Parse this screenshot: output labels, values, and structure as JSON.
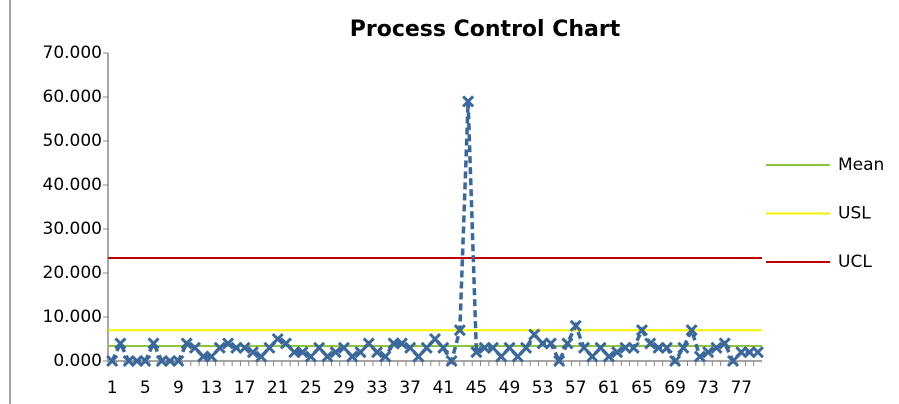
{
  "chart_data": {
    "type": "line",
    "title": "Process Control Chart",
    "categories": [
      1,
      null,
      null,
      null,
      5,
      null,
      null,
      null,
      9,
      null,
      null,
      null,
      13,
      null,
      null,
      null,
      17,
      null,
      null,
      null,
      21,
      null,
      null,
      null,
      25,
      null,
      null,
      null,
      29,
      null,
      null,
      null,
      33,
      null,
      null,
      null,
      37,
      null,
      null,
      null,
      41,
      null,
      null,
      null,
      45,
      null,
      null,
      null,
      49,
      null,
      null,
      null,
      53,
      null,
      null,
      null,
      57,
      null,
      null,
      null,
      61,
      null,
      null,
      null,
      65,
      null,
      null,
      null,
      69,
      null,
      null,
      null,
      73,
      null,
      null,
      null,
      77,
      null,
      null
    ],
    "series": [
      {
        "color": "#3a679c",
        "values": [
          0,
          4,
          0,
          0,
          0,
          4,
          0,
          0,
          0,
          4,
          3,
          1,
          1,
          3,
          4,
          3,
          3,
          2,
          1,
          3,
          5,
          4,
          2,
          2,
          1,
          3,
          1,
          2,
          3,
          1,
          2,
          4,
          2,
          1,
          4,
          4,
          3,
          1,
          3,
          5,
          3,
          0,
          7,
          59,
          2,
          3,
          3,
          1,
          3,
          1,
          3,
          6,
          4,
          4,
          0,
          4,
          8,
          3,
          1,
          3,
          1,
          2,
          3,
          3,
          7,
          4,
          3,
          3,
          0,
          3,
          7,
          1,
          2,
          3,
          4,
          0,
          2,
          2,
          2
        ]
      }
    ],
    "reference_lines": [
      {
        "name": "Mean",
        "color": "#8cc63f",
        "value": 3.4
      },
      {
        "name": "USL",
        "color": "#f2f200",
        "value": 7.0
      },
      {
        "name": "UCL",
        "color": "#c00000",
        "value": 23.4
      }
    ],
    "ylim": [
      0,
      70
    ],
    "yticks": [
      {
        "value": 0,
        "label": "0.000"
      },
      {
        "value": 10,
        "label": "10.000"
      },
      {
        "value": 20,
        "label": "20.000"
      },
      {
        "value": 30,
        "label": "30.000"
      },
      {
        "value": 40,
        "label": "40.000"
      },
      {
        "value": 50,
        "label": "50.000"
      },
      {
        "value": 60,
        "label": "60.000"
      },
      {
        "value": 70,
        "label": "70.000"
      }
    ],
    "grid": false,
    "legend": "right"
  }
}
